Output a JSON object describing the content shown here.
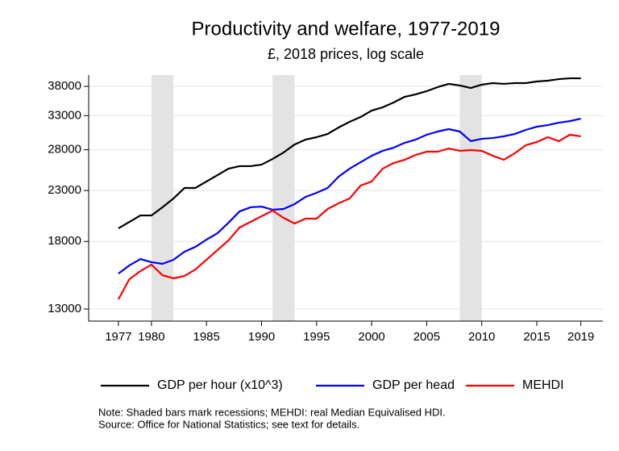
{
  "chart_data": {
    "type": "line",
    "title": "Productivity and welfare, 1977-2019",
    "subtitle": "£, 2018 prices, log scale",
    "x": [
      1977,
      1978,
      1979,
      1980,
      1981,
      1982,
      1983,
      1984,
      1985,
      1986,
      1987,
      1988,
      1989,
      1990,
      1991,
      1992,
      1993,
      1994,
      1995,
      1996,
      1997,
      1998,
      1999,
      2000,
      2001,
      2002,
      2003,
      2004,
      2005,
      2006,
      2007,
      2008,
      2009,
      2010,
      2011,
      2012,
      2013,
      2014,
      2015,
      2016,
      2017,
      2018,
      2019
    ],
    "series": [
      {
        "name": "GDP per hour (x10^3)",
        "color": "#000000",
        "values": [
          19170,
          19780,
          20400,
          20400,
          21220,
          22140,
          23290,
          23290,
          24030,
          24780,
          25560,
          25870,
          25870,
          26060,
          26780,
          27630,
          28720,
          29400,
          29750,
          30210,
          31170,
          32030,
          32780,
          33820,
          34350,
          35160,
          36130,
          36560,
          37130,
          37860,
          38460,
          38160,
          37700,
          38310,
          38600,
          38460,
          38600,
          38600,
          38900,
          39050,
          39350,
          39500,
          39500
        ]
      },
      {
        "name": "GDP per head",
        "color": "#0000ff",
        "values": [
          15420,
          16040,
          16540,
          16290,
          16160,
          16480,
          17130,
          17540,
          18160,
          18730,
          19700,
          20800,
          21220,
          21290,
          20970,
          21050,
          21550,
          22310,
          22750,
          23290,
          24590,
          25560,
          26370,
          27200,
          27850,
          28280,
          28950,
          29400,
          30100,
          30570,
          30930,
          30570,
          29180,
          29510,
          29630,
          29870,
          30210,
          30810,
          31290,
          31530,
          31900,
          32140,
          32530
        ]
      },
      {
        "name": "MEHDI",
        "color": "#ff0000",
        "values": [
          13620,
          15010,
          15610,
          16100,
          15300,
          15070,
          15240,
          15730,
          16480,
          17270,
          18090,
          19250,
          19780,
          20330,
          20890,
          20170,
          19630,
          20090,
          20090,
          21050,
          21630,
          22140,
          23560,
          24030,
          25560,
          26270,
          26680,
          27310,
          27740,
          27740,
          28170,
          27850,
          27960,
          27850,
          27200,
          26680,
          27530,
          28620,
          29060,
          29750,
          29180,
          30100,
          29870
        ]
      }
    ],
    "recessions": [
      [
        1980,
        1982
      ],
      [
        1991,
        1993
      ],
      [
        2008,
        2010
      ]
    ],
    "xlim": [
      1974.3,
      2021
    ],
    "xticks": [
      1977,
      1980,
      1985,
      1990,
      1995,
      2000,
      2005,
      2010,
      2015,
      2019
    ],
    "ylim": [
      12264,
      40130
    ],
    "yticks": [
      13000,
      18000,
      23000,
      28000,
      33000,
      38000
    ],
    "log_scale": true,
    "grid": true,
    "notes": [
      "Note: Shaded bars mark recessions; MEHDI: real Median Equivalised HDI.",
      "Source: Office for National Statistics; see text for details."
    ]
  }
}
